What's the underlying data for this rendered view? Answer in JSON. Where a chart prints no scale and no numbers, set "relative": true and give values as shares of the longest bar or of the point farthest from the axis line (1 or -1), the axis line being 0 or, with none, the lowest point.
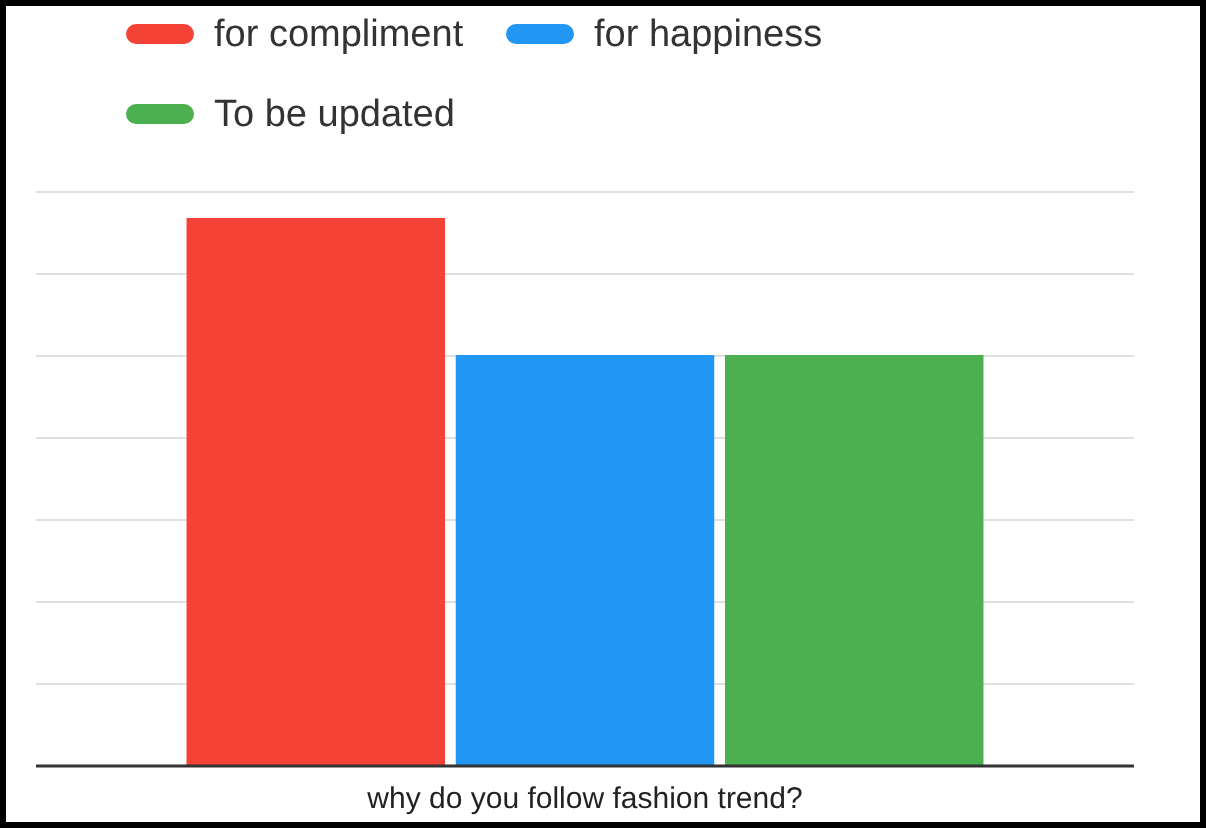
{
  "chart_data": {
    "type": "bar",
    "relative": true,
    "xlabel": "why do you follow fashion trend?",
    "categories": [
      null
    ],
    "series": [
      {
        "name": "for compliment",
        "color": "#f44336",
        "values": [
          1
        ]
      },
      {
        "name": "for happiness",
        "color": "#2196f3",
        "values": [
          0.75
        ]
      },
      {
        "name": "To be updated",
        "color": "#4caf50",
        "values": [
          0.75
        ]
      }
    ],
    "grid": "y",
    "legend": "top left"
  }
}
